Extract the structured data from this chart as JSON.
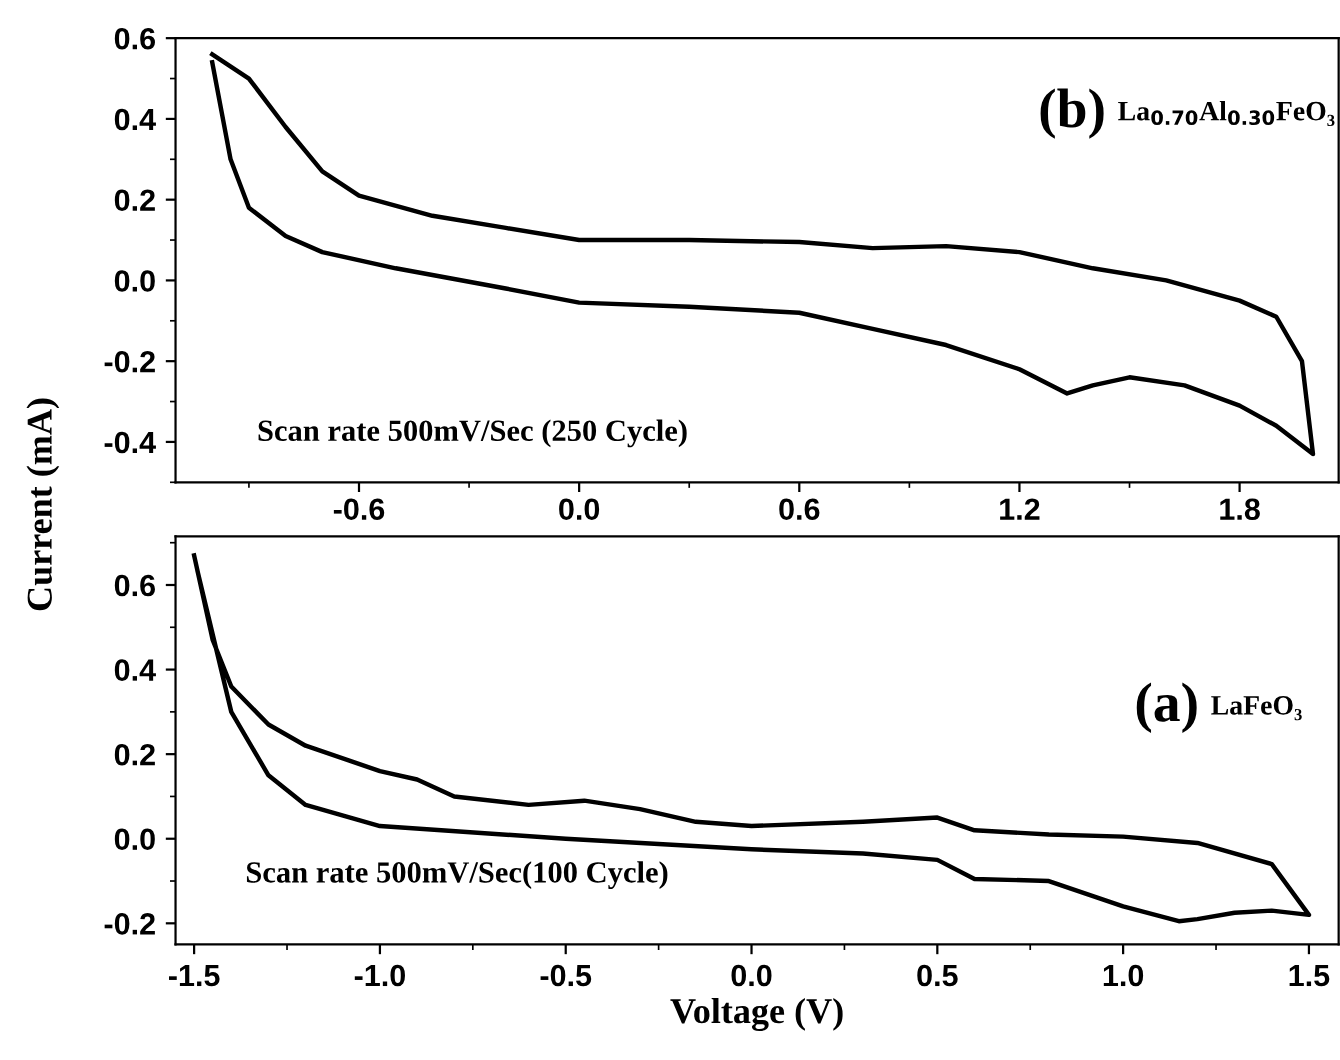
{
  "chart_data": [
    {
      "type": "line",
      "ylabel": "Current (mA)",
      "annotations": [
        "(b)",
        "La$_{0.70}$Al$_{0.30}$FeO₃",
        "Scan rate 500mV/Sec (250 Cycle)"
      ],
      "xlim": [
        -1.1,
        2.07
      ],
      "ylim": [
        -0.5,
        0.6
      ],
      "xticks": [
        -0.6,
        {
          "value": 0,
          "label": "0.0"
        },
        0.6,
        1.2,
        1.8
      ],
      "yticks": [
        -0.4,
        -0.2,
        {
          "value": 0,
          "label": "0.0"
        },
        0.2,
        0.4,
        0.6
      ],
      "series": [
        {
          "color": "#000000",
          "x": [
            -1.0,
            -0.9,
            -0.8,
            -0.7,
            -0.6,
            -0.4,
            -0.2,
            0.0,
            0.3,
            0.6,
            0.8,
            1.0,
            1.2,
            1.4,
            1.6,
            1.8,
            1.9,
            1.97,
            2.0,
            1.9,
            1.8,
            1.65,
            1.5,
            1.4,
            1.33,
            1.2,
            1.0,
            0.8,
            0.6,
            0.3,
            0.0,
            -0.2,
            -0.5,
            -0.7,
            -0.8,
            -0.9,
            -0.95,
            -1.0
          ],
          "values": [
            0.56,
            0.5,
            0.38,
            0.27,
            0.21,
            0.16,
            0.13,
            0.1,
            0.1,
            0.095,
            0.08,
            0.085,
            0.07,
            0.03,
            0.0,
            -0.05,
            -0.09,
            -0.2,
            -0.43,
            -0.36,
            -0.31,
            -0.26,
            -0.24,
            -0.26,
            -0.28,
            -0.22,
            -0.16,
            -0.12,
            -0.08,
            -0.065,
            -0.055,
            -0.02,
            0.03,
            0.07,
            0.11,
            0.18,
            0.3,
            0.54
          ]
        }
      ]
    },
    {
      "type": "line",
      "xlabel": "Voltage (V)",
      "annotations": [
        "(a)",
        "LaFeO₃",
        "Scan rate 500mV/Sec(100 Cycle)"
      ],
      "xlim": [
        -1.55,
        1.58
      ],
      "ylim": [
        -0.25,
        0.715
      ],
      "xticks": [
        -1.5,
        {
          "value": -1,
          "label": "-1.0"
        },
        -0.5,
        {
          "value": 0,
          "label": "0.0"
        },
        0.5,
        {
          "value": 1,
          "label": "1.0"
        },
        1.5
      ],
      "yticks": [
        -0.2,
        {
          "value": 0,
          "label": "0.0"
        },
        0.2,
        0.4,
        0.6
      ],
      "series": [
        {
          "color": "#000000",
          "x": [
            -1.5,
            -1.45,
            -1.4,
            -1.3,
            -1.2,
            -1.0,
            -0.9,
            -0.8,
            -0.6,
            -0.45,
            -0.3,
            -0.15,
            0.0,
            0.3,
            0.5,
            0.6,
            0.8,
            1.0,
            1.2,
            1.4,
            1.5,
            1.4,
            1.3,
            1.2,
            1.15,
            1.0,
            0.8,
            0.6,
            0.5,
            0.3,
            0.0,
            -0.5,
            -1.0,
            -1.2,
            -1.3,
            -1.4,
            -1.49
          ],
          "values": [
            0.67,
            0.47,
            0.36,
            0.27,
            0.22,
            0.16,
            0.14,
            0.1,
            0.08,
            0.09,
            0.07,
            0.04,
            0.03,
            0.04,
            0.05,
            0.02,
            0.01,
            0.005,
            -0.01,
            -0.06,
            -0.18,
            -0.17,
            -0.175,
            -0.19,
            -0.195,
            -0.16,
            -0.1,
            -0.095,
            -0.05,
            -0.035,
            -0.025,
            0.0,
            0.03,
            0.08,
            0.15,
            0.3,
            0.63
          ]
        }
      ]
    }
  ]
}
